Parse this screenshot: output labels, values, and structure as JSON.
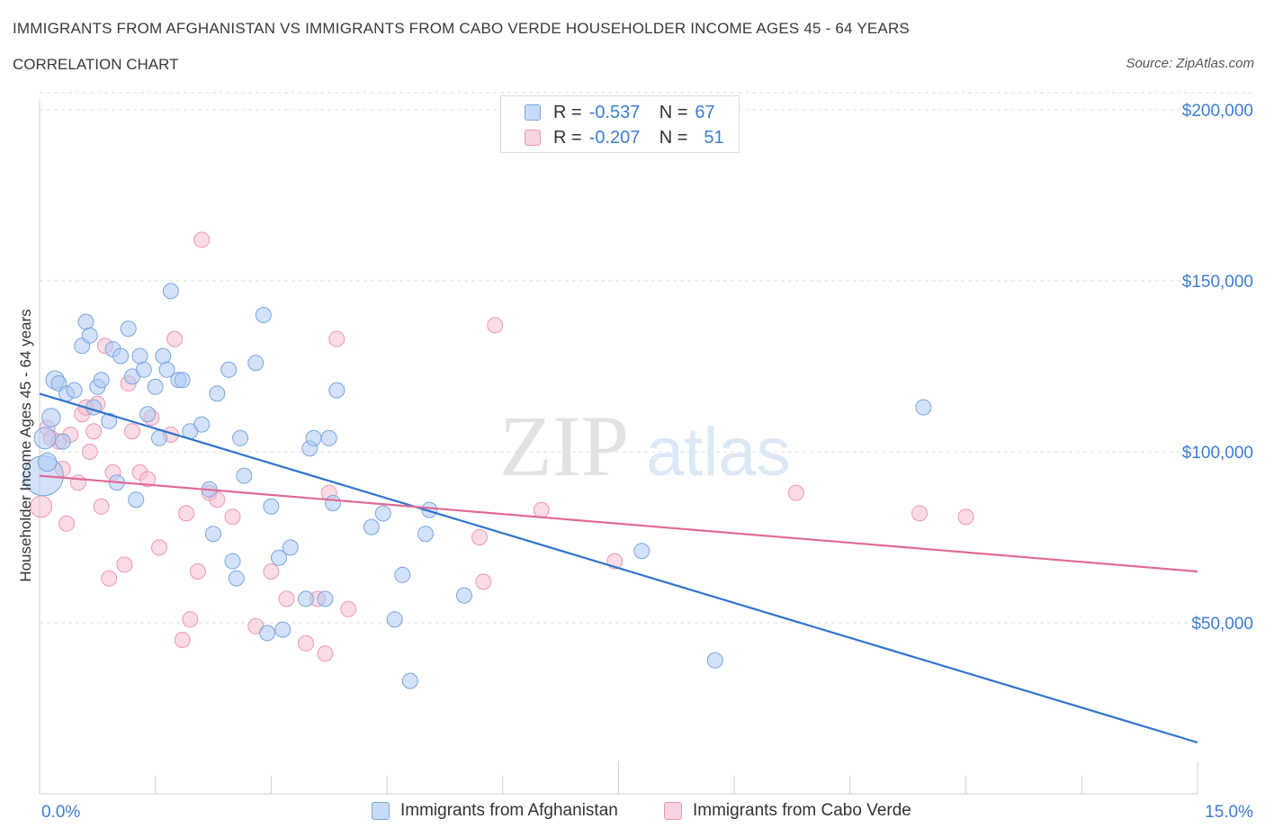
{
  "header": {
    "title": "IMMIGRANTS FROM AFGHANISTAN VS IMMIGRANTS FROM CABO VERDE HOUSEHOLDER INCOME AGES 45 - 64 YEARS",
    "subtitle": "CORRELATION CHART",
    "source": "Source: ZipAtlas.com"
  },
  "watermark": {
    "zip": "ZIP",
    "atlas": "atlas"
  },
  "colors": {
    "blue_fill": "#aecbf2",
    "blue_stroke": "#7aa6e0",
    "blue_line": "#2f74d0",
    "pink_fill": "#f6bfd0",
    "pink_stroke": "#ee98b4",
    "pink_line": "#e06a94",
    "axis_text": "#3d7dd6",
    "grid": "#dcdcdc"
  },
  "legend": {
    "r_label": "R =",
    "n_label": "N =",
    "series": [
      {
        "r": "-0.537",
        "n": "67"
      },
      {
        "r": "-0.207",
        "n": "51"
      }
    ]
  },
  "chart_data": {
    "type": "scatter",
    "title": "IMMIGRANTS FROM AFGHANISTAN VS IMMIGRANTS FROM CABO VERDE HOUSEHOLDER INCOME AGES 45 - 64 YEARS",
    "xlabel": "",
    "ylabel": "Householder Income Ages 45 - 64 years",
    "xlim": [
      0,
      15
    ],
    "ylim": [
      0,
      210000
    ],
    "x_tick_labels": [
      "0.0%",
      "15.0%"
    ],
    "y_ticks": [
      50000,
      100000,
      150000,
      200000
    ],
    "y_tick_labels": [
      "$50,000",
      "$100,000",
      "$150,000",
      "$200,000"
    ],
    "grid": true,
    "legend_position": "top-center",
    "series": [
      {
        "name": "Immigrants from Afghanistan",
        "color": "#aecbf2",
        "trend": {
          "x": [
            0,
            15
          ],
          "y": [
            117000,
            15000
          ]
        },
        "points": [
          [
            0.05,
            93000,
            26
          ],
          [
            0.07,
            104000,
            14
          ],
          [
            0.1,
            97000,
            12
          ],
          [
            0.15,
            110000,
            12
          ],
          [
            0.2,
            121000,
            12
          ],
          [
            0.25,
            120000,
            10
          ],
          [
            0.35,
            117000,
            10
          ],
          [
            0.45,
            118000,
            10
          ],
          [
            0.55,
            131000,
            10
          ],
          [
            0.6,
            138000,
            10
          ],
          [
            0.65,
            134000,
            10
          ],
          [
            0.7,
            113000,
            10
          ],
          [
            0.75,
            119000,
            10
          ],
          [
            0.8,
            121000,
            10
          ],
          [
            0.9,
            109000,
            10
          ],
          [
            0.95,
            130000,
            10
          ],
          [
            1.0,
            91000,
            10
          ],
          [
            1.05,
            128000,
            10
          ],
          [
            1.15,
            136000,
            10
          ],
          [
            1.2,
            122000,
            10
          ],
          [
            1.25,
            86000,
            10
          ],
          [
            1.3,
            128000,
            10
          ],
          [
            1.35,
            124000,
            10
          ],
          [
            1.4,
            111000,
            10
          ],
          [
            1.5,
            119000,
            10
          ],
          [
            1.55,
            104000,
            10
          ],
          [
            1.6,
            128000,
            10
          ],
          [
            1.65,
            124000,
            10
          ],
          [
            1.7,
            147000,
            10
          ],
          [
            1.8,
            121000,
            10
          ],
          [
            1.85,
            121000,
            10
          ],
          [
            1.95,
            106000,
            10
          ],
          [
            2.1,
            108000,
            10
          ],
          [
            2.2,
            89000,
            10
          ],
          [
            2.25,
            76000,
            10
          ],
          [
            2.3,
            117000,
            10
          ],
          [
            2.45,
            124000,
            10
          ],
          [
            2.5,
            68000,
            10
          ],
          [
            2.55,
            63000,
            10
          ],
          [
            2.6,
            104000,
            10
          ],
          [
            2.65,
            93000,
            10
          ],
          [
            2.8,
            126000,
            10
          ],
          [
            2.9,
            140000,
            10
          ],
          [
            2.95,
            47000,
            10
          ],
          [
            3.0,
            84000,
            10
          ],
          [
            3.1,
            69000,
            10
          ],
          [
            3.15,
            48000,
            10
          ],
          [
            3.25,
            72000,
            10
          ],
          [
            3.45,
            57000,
            10
          ],
          [
            3.5,
            101000,
            10
          ],
          [
            3.55,
            104000,
            10
          ],
          [
            3.7,
            57000,
            10
          ],
          [
            3.75,
            104000,
            10
          ],
          [
            3.8,
            85000,
            10
          ],
          [
            3.85,
            118000,
            10
          ],
          [
            4.3,
            78000,
            10
          ],
          [
            4.45,
            82000,
            10
          ],
          [
            4.6,
            51000,
            10
          ],
          [
            4.7,
            64000,
            10
          ],
          [
            4.8,
            33000,
            10
          ],
          [
            5.0,
            76000,
            10
          ],
          [
            5.05,
            83000,
            10
          ],
          [
            5.5,
            58000,
            10
          ],
          [
            7.8,
            71000,
            10
          ],
          [
            8.75,
            39000,
            10
          ],
          [
            11.45,
            113000,
            10
          ],
          [
            0.3,
            103000,
            10
          ]
        ]
      },
      {
        "name": "Immigrants from Cabo Verde",
        "color": "#f6bfd0",
        "trend": {
          "x": [
            0,
            15
          ],
          "y": [
            93000,
            65000
          ]
        },
        "points": [
          [
            0.02,
            84000,
            14
          ],
          [
            0.1,
            107000,
            10
          ],
          [
            0.15,
            104000,
            10
          ],
          [
            0.25,
            103000,
            10
          ],
          [
            0.3,
            95000,
            10
          ],
          [
            0.35,
            79000,
            10
          ],
          [
            0.4,
            105000,
            10
          ],
          [
            0.5,
            91000,
            10
          ],
          [
            0.55,
            111000,
            10
          ],
          [
            0.65,
            100000,
            10
          ],
          [
            0.7,
            106000,
            10
          ],
          [
            0.75,
            114000,
            10
          ],
          [
            0.8,
            84000,
            10
          ],
          [
            0.85,
            131000,
            10
          ],
          [
            0.9,
            63000,
            10
          ],
          [
            0.95,
            94000,
            10
          ],
          [
            1.1,
            67000,
            10
          ],
          [
            1.15,
            120000,
            10
          ],
          [
            1.2,
            106000,
            10
          ],
          [
            1.3,
            94000,
            10
          ],
          [
            1.4,
            92000,
            10
          ],
          [
            1.45,
            110000,
            10
          ],
          [
            1.55,
            72000,
            10
          ],
          [
            1.7,
            105000,
            10
          ],
          [
            1.75,
            133000,
            10
          ],
          [
            1.85,
            45000,
            10
          ],
          [
            1.9,
            82000,
            10
          ],
          [
            1.95,
            51000,
            10
          ],
          [
            2.05,
            65000,
            10
          ],
          [
            2.1,
            162000,
            10
          ],
          [
            2.2,
            88000,
            10
          ],
          [
            2.3,
            86000,
            10
          ],
          [
            2.5,
            81000,
            10
          ],
          [
            2.8,
            49000,
            10
          ],
          [
            3.0,
            65000,
            10
          ],
          [
            3.2,
            57000,
            10
          ],
          [
            3.45,
            44000,
            10
          ],
          [
            3.6,
            57000,
            10
          ],
          [
            3.75,
            88000,
            10
          ],
          [
            3.85,
            133000,
            10
          ],
          [
            4.0,
            54000,
            10
          ],
          [
            3.7,
            41000,
            10
          ],
          [
            5.7,
            75000,
            10
          ],
          [
            5.75,
            62000,
            10
          ],
          [
            5.9,
            137000,
            10
          ],
          [
            6.5,
            83000,
            10
          ],
          [
            7.45,
            68000,
            10
          ],
          [
            9.8,
            88000,
            10
          ],
          [
            11.4,
            82000,
            10
          ],
          [
            12.0,
            81000,
            10
          ],
          [
            0.6,
            113000,
            10
          ]
        ]
      }
    ]
  }
}
